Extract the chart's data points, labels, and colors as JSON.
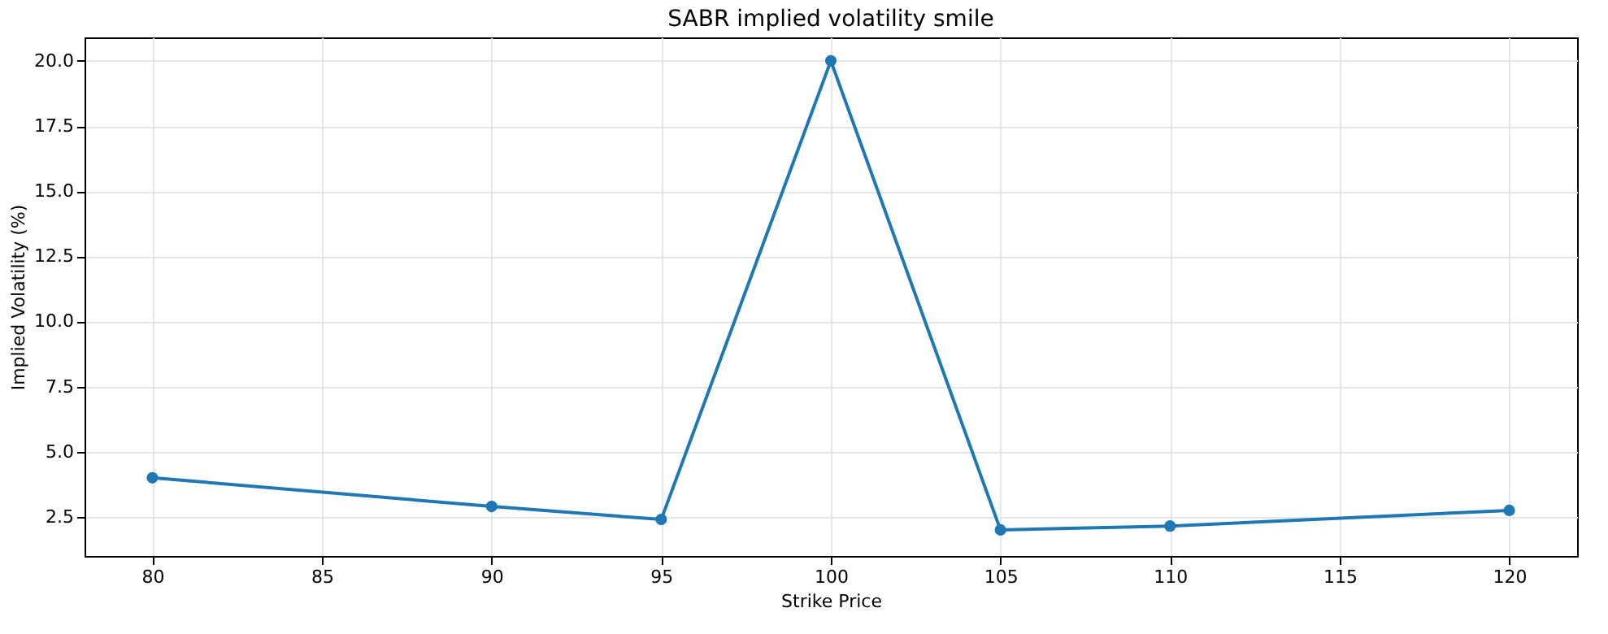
{
  "chart_data": {
    "type": "line",
    "title": "SABR implied volatility smile",
    "xlabel": "Strike Price",
    "ylabel": "Implied Volatility (%)",
    "x": [
      80,
      90,
      95,
      100,
      105,
      110,
      120
    ],
    "series": [
      {
        "color": "#1f77b4",
        "values": [
          4.0,
          2.9,
          2.4,
          20.0,
          2.0,
          2.15,
          2.75
        ]
      }
    ],
    "xlim": [
      78,
      122
    ],
    "xticks": [
      80,
      85,
      90,
      95,
      100,
      105,
      110,
      115,
      120
    ],
    "ylim": [
      1.0,
      20.9
    ],
    "yticks": [
      {
        "value": 2.5,
        "label": "2.5"
      },
      {
        "value": 5,
        "label": "5.0"
      },
      {
        "value": 7.5,
        "label": "7.5"
      },
      {
        "value": 10,
        "label": "10.0"
      },
      {
        "value": 12.5,
        "label": "12.5"
      },
      {
        "value": 15,
        "label": "15.0"
      },
      {
        "value": 17.5,
        "label": "17.5"
      },
      {
        "value": 20,
        "label": "20.0"
      }
    ],
    "grid": true,
    "marker": "circle",
    "line_style": "solid"
  }
}
